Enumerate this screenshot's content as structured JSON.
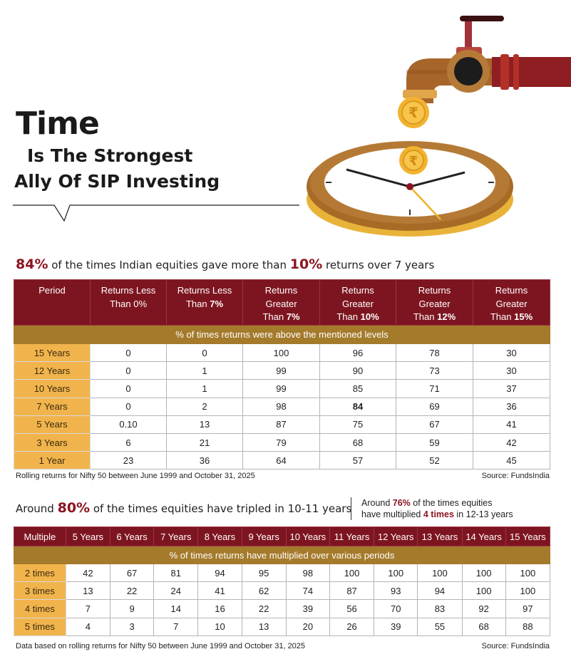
{
  "title": {
    "line1": "Time",
    "line2": "Is The Strongest",
    "line3": "Ally Of SIP Investing"
  },
  "icons": {
    "tap": "tap-icon",
    "coin": "rupee-coin-icon",
    "clock": "clock-icon",
    "symbol": "₹"
  },
  "colors": {
    "maroon": "#7d1520",
    "gold_band": "#a47a2b",
    "row_head": "#f1b44c",
    "accent_red": "#8b1420"
  },
  "section1": {
    "headline": {
      "pct": "84%",
      "mid": " of the times Indian equities gave more than ",
      "pct2": "10%",
      "end": " returns over 7 years"
    },
    "headers": [
      {
        "l1": "Period"
      },
      {
        "l1": "Returns Less",
        "l2": "Than 0%"
      },
      {
        "l1": "Returns Less",
        "l2": "Than ",
        "b": "7%"
      },
      {
        "l1": "Returns",
        "l2": "Greater",
        "l3": "Than ",
        "b": "7%"
      },
      {
        "l1": "Returns",
        "l2": "Greater",
        "l3": "Than ",
        "b": "10%"
      },
      {
        "l1": "Returns",
        "l2": "Greater",
        "l3": "Than ",
        "b": "12%"
      },
      {
        "l1": "Returns",
        "l2": "Greater",
        "l3": "Than ",
        "b": "15%"
      }
    ],
    "band": "% of times returns were above the mentioned levels",
    "rows": [
      {
        "period": "15 Years",
        "cells": [
          "0",
          "0",
          "100",
          "96",
          "78",
          "30"
        ]
      },
      {
        "period": "12 Years",
        "cells": [
          "0",
          "1",
          "99",
          "90",
          "73",
          "30"
        ]
      },
      {
        "period": "10 Years",
        "cells": [
          "0",
          "1",
          "99",
          "85",
          "71",
          "37"
        ]
      },
      {
        "period": "7 Years",
        "cells": [
          "0",
          "2",
          "98",
          "84",
          "69",
          "36"
        ]
      },
      {
        "period": "5 Years",
        "cells": [
          "0.10",
          "13",
          "87",
          "75",
          "67",
          "41"
        ]
      },
      {
        "period": "3 Years",
        "cells": [
          "6",
          "21",
          "79",
          "68",
          "59",
          "42"
        ]
      },
      {
        "period": "1 Year",
        "cells": [
          "23",
          "36",
          "64",
          "57",
          "52",
          "45"
        ]
      }
    ],
    "footnote": "Rolling returns for Nifty 50 between June 1999 and October 31, 2025",
    "source": "Source: FundsIndia"
  },
  "section2": {
    "headline": {
      "pre": "Around ",
      "pct": "80%",
      "end": " of the times equities have tripled in 10-11 years"
    },
    "side_note": {
      "pre": "Around ",
      "pct": "76%",
      "l1end": " of the times equities",
      "l2pre": "have multiplied ",
      "bold": "4 times",
      "l2end": " in 12-13 years"
    },
    "headers": [
      "Multiple",
      "5 Years",
      "6 Years",
      "7 Years",
      "8 Years",
      "9 Years",
      "10 Years",
      "11 Years",
      "12 Years",
      "13 Years",
      "14 Years",
      "15 Years"
    ],
    "band": "% of times returns have multiplied over various periods",
    "rows": [
      {
        "label": "2 times",
        "cells": [
          "42",
          "67",
          "81",
          "94",
          "95",
          "98",
          "100",
          "100",
          "100",
          "100",
          "100"
        ]
      },
      {
        "label": "3 times",
        "cells": [
          "13",
          "22",
          "24",
          "41",
          "62",
          "74",
          "87",
          "93",
          "94",
          "100",
          "100"
        ]
      },
      {
        "label": "4 times",
        "cells": [
          "7",
          "9",
          "14",
          "16",
          "22",
          "39",
          "56",
          "70",
          "83",
          "92",
          "97"
        ]
      },
      {
        "label": "5 times",
        "cells": [
          "4",
          "3",
          "7",
          "10",
          "13",
          "20",
          "26",
          "39",
          "55",
          "68",
          "88"
        ]
      }
    ],
    "footnote": "Data based on rolling returns for Nifty 50 between June 1999 and October 31, 2025",
    "source": "Source: FundsIndia"
  }
}
